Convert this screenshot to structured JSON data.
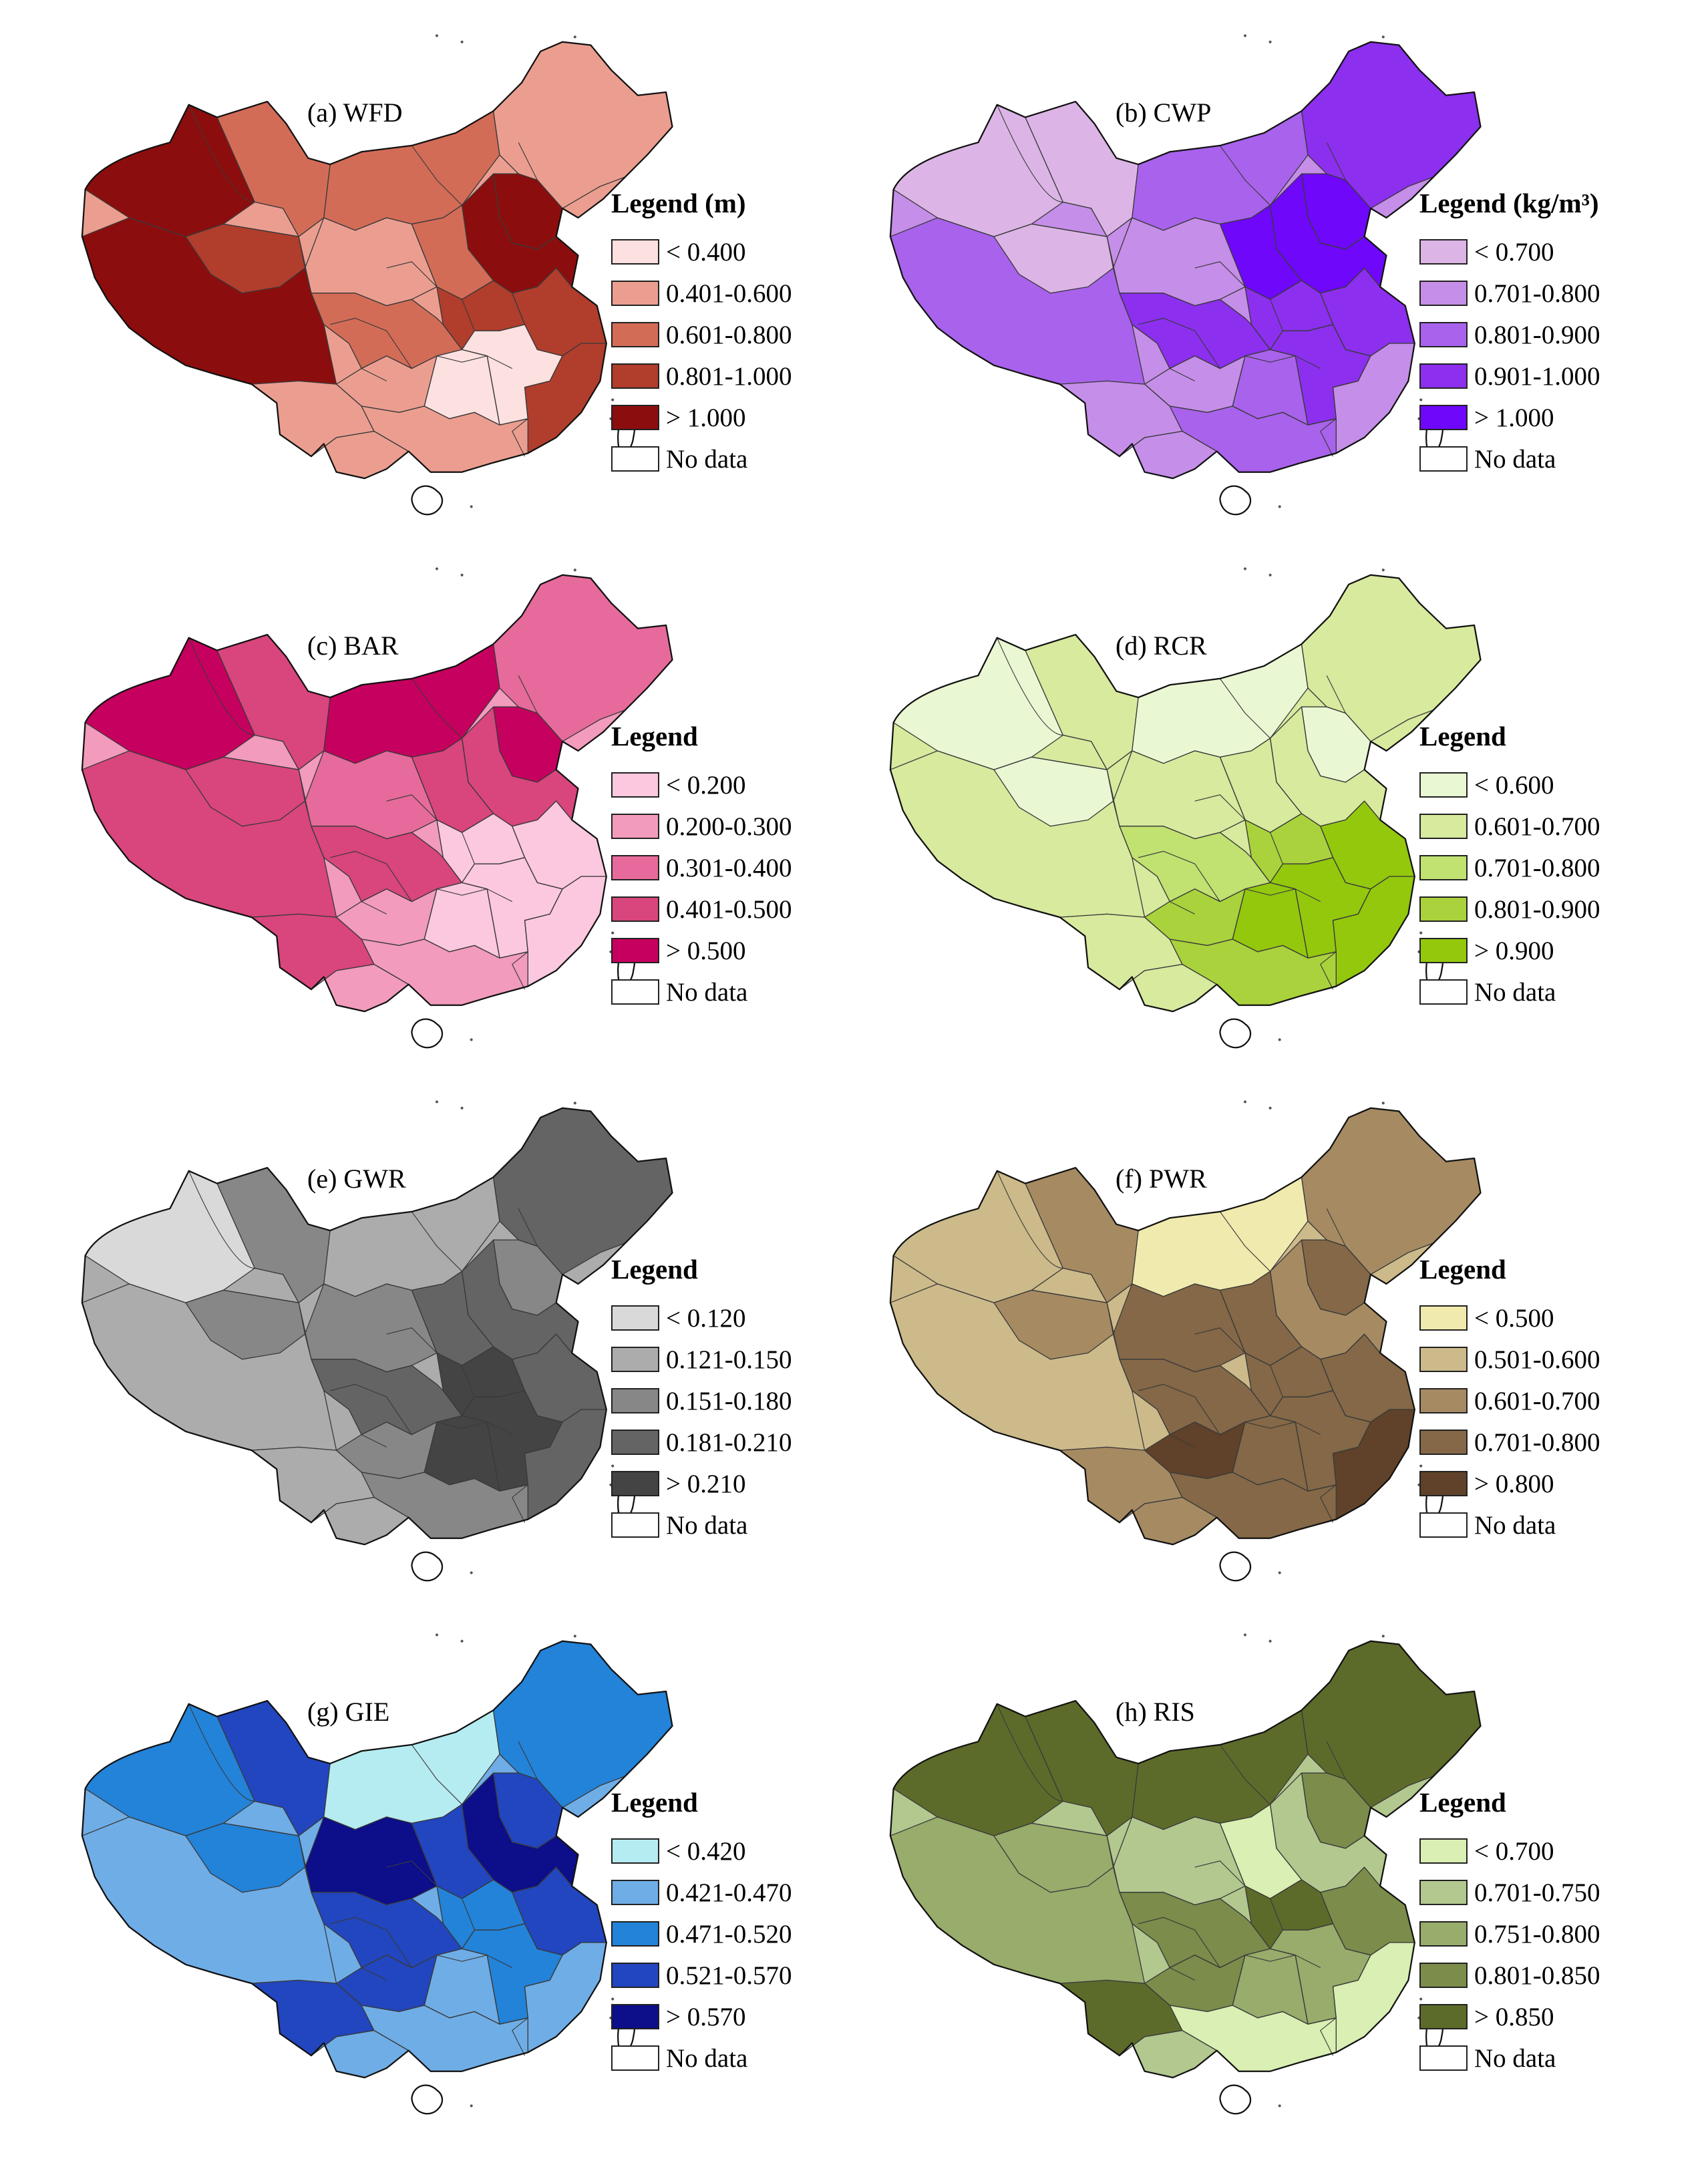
{
  "maps": [
    {
      "id": "a",
      "title": "(a) WFD",
      "legend_title": "Legend (m)",
      "classes": [
        {
          "label": "< 0.400",
          "color": "#fde0e0"
        },
        {
          "label": "0.401-0.600",
          "color": "#eb9e90"
        },
        {
          "label": "0.601-0.800",
          "color": "#d36c57"
        },
        {
          "label": "0.801-1.000",
          "color": "#b13d2c"
        },
        {
          "label": "> 1.000",
          "color": "#8c0d0d"
        }
      ],
      "no_data_label": "No data"
    },
    {
      "id": "b",
      "title": "(b) CWP",
      "legend_title": "Legend (kg/m³)",
      "classes": [
        {
          "label": "< 0.700",
          "color": "#dcb5e6"
        },
        {
          "label": "0.701-0.800",
          "color": "#c58ee8"
        },
        {
          "label": "0.801-0.900",
          "color": "#a862ec"
        },
        {
          "label": "0.901-1.000",
          "color": "#8c2fef"
        },
        {
          "label": "> 1.000",
          "color": "#6f07fa"
        }
      ],
      "no_data_label": "No data"
    },
    {
      "id": "c",
      "title": "(c) BAR",
      "legend_title": "Legend",
      "classes": [
        {
          "label": "< 0.200",
          "color": "#fcc8df"
        },
        {
          "label": "0.200-0.300",
          "color": "#f29bbd"
        },
        {
          "label": "0.301-0.400",
          "color": "#e66a9b"
        },
        {
          "label": "0.401-0.500",
          "color": "#d9457d"
        },
        {
          "label": "> 0.500",
          "color": "#c6005e"
        }
      ],
      "no_data_label": "No data"
    },
    {
      "id": "d",
      "title": "(d) RCR",
      "legend_title": "Legend",
      "classes": [
        {
          "label": "< 0.600",
          "color": "#eaf7d3"
        },
        {
          "label": "0.601-0.700",
          "color": "#d7ea9e"
        },
        {
          "label": "0.701-0.800",
          "color": "#c1e171"
        },
        {
          "label": "0.801-0.900",
          "color": "#aad23c"
        },
        {
          "label": "> 0.900",
          "color": "#93c80d"
        }
      ],
      "no_data_label": "No data"
    },
    {
      "id": "e",
      "title": "(e) GWR",
      "legend_title": "Legend",
      "classes": [
        {
          "label": "< 0.120",
          "color": "#d9d9d9"
        },
        {
          "label": "0.121-0.150",
          "color": "#acacac"
        },
        {
          "label": "0.151-0.180",
          "color": "#878787"
        },
        {
          "label": "0.181-0.210",
          "color": "#646464"
        },
        {
          "label": "> 0.210",
          "color": "#444444"
        }
      ],
      "no_data_label": "No data"
    },
    {
      "id": "f",
      "title": "(f) PWR",
      "legend_title": "Legend",
      "classes": [
        {
          "label": "< 0.500",
          "color": "#f1eaae"
        },
        {
          "label": "0.501-0.600",
          "color": "#ccba8a"
        },
        {
          "label": "0.601-0.700",
          "color": "#a68a62"
        },
        {
          "label": "0.701-0.800",
          "color": "#846847"
        },
        {
          "label": "> 0.800",
          "color": "#5f4229"
        }
      ],
      "no_data_label": "No data"
    },
    {
      "id": "g",
      "title": "(g) GIE",
      "legend_title": "Legend",
      "classes": [
        {
          "label": "< 0.420",
          "color": "#b5ecf1"
        },
        {
          "label": "0.421-0.470",
          "color": "#6fade6"
        },
        {
          "label": "0.471-0.520",
          "color": "#2283d9"
        },
        {
          "label": "0.521-0.570",
          "color": "#2146bf"
        },
        {
          "label": "> 0.570",
          "color": "#0c0e8a"
        }
      ],
      "no_data_label": "No data"
    },
    {
      "id": "h",
      "title": "(h) RIS",
      "legend_title": "Legend",
      "classes": [
        {
          "label": "< 0.700",
          "color": "#d9efb3"
        },
        {
          "label": "0.701-0.750",
          "color": "#b2c88f"
        },
        {
          "label": "0.751-0.800",
          "color": "#98ac6b"
        },
        {
          "label": "0.801-0.850",
          "color": "#7b8c4b"
        },
        {
          "label": "> 0.850",
          "color": "#5d6b2a"
        }
      ],
      "no_data_label": "No data"
    }
  ]
}
